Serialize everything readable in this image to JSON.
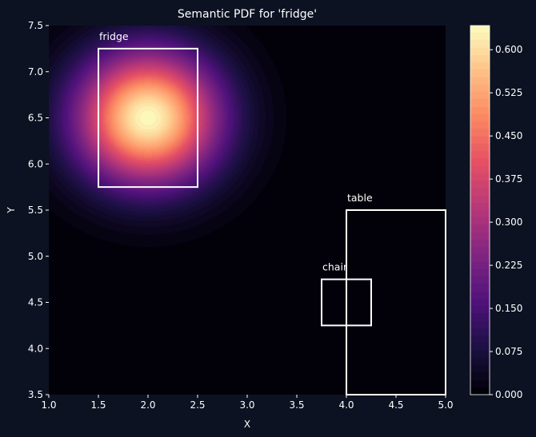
{
  "chart_data": {
    "type": "heatmap",
    "title": "Semantic PDF for 'fridge'",
    "xlabel": "X",
    "ylabel": "Y",
    "xlim": [
      1.0,
      5.0
    ],
    "ylim": [
      3.5,
      7.5
    ],
    "xticks": [
      "1.0",
      "1.5",
      "2.0",
      "2.5",
      "3.0",
      "3.5",
      "4.0",
      "4.5",
      "5.0"
    ],
    "yticks": [
      "3.5",
      "4.0",
      "4.5",
      "5.0",
      "5.5",
      "6.0",
      "6.5",
      "7.0",
      "7.5"
    ],
    "gaussian": {
      "mean": [
        2.0,
        6.5
      ],
      "sigma": 0.5,
      "peak": 0.637
    },
    "colormap": "magma",
    "colorbar": {
      "range": [
        0.0,
        0.642
      ],
      "ticks": [
        "0.000",
        "0.075",
        "0.150",
        "0.225",
        "0.300",
        "0.375",
        "0.450",
        "0.525",
        "0.600"
      ]
    },
    "boxes": [
      {
        "label": "fridge",
        "x": [
          1.5,
          2.5
        ],
        "y": [
          5.75,
          7.25
        ]
      },
      {
        "label": "table",
        "x": [
          4.0,
          5.0
        ],
        "y": [
          3.5,
          5.5
        ]
      },
      {
        "label": "chair",
        "x": [
          3.75,
          4.25
        ],
        "y": [
          4.25,
          4.75
        ]
      }
    ],
    "grid": false
  }
}
